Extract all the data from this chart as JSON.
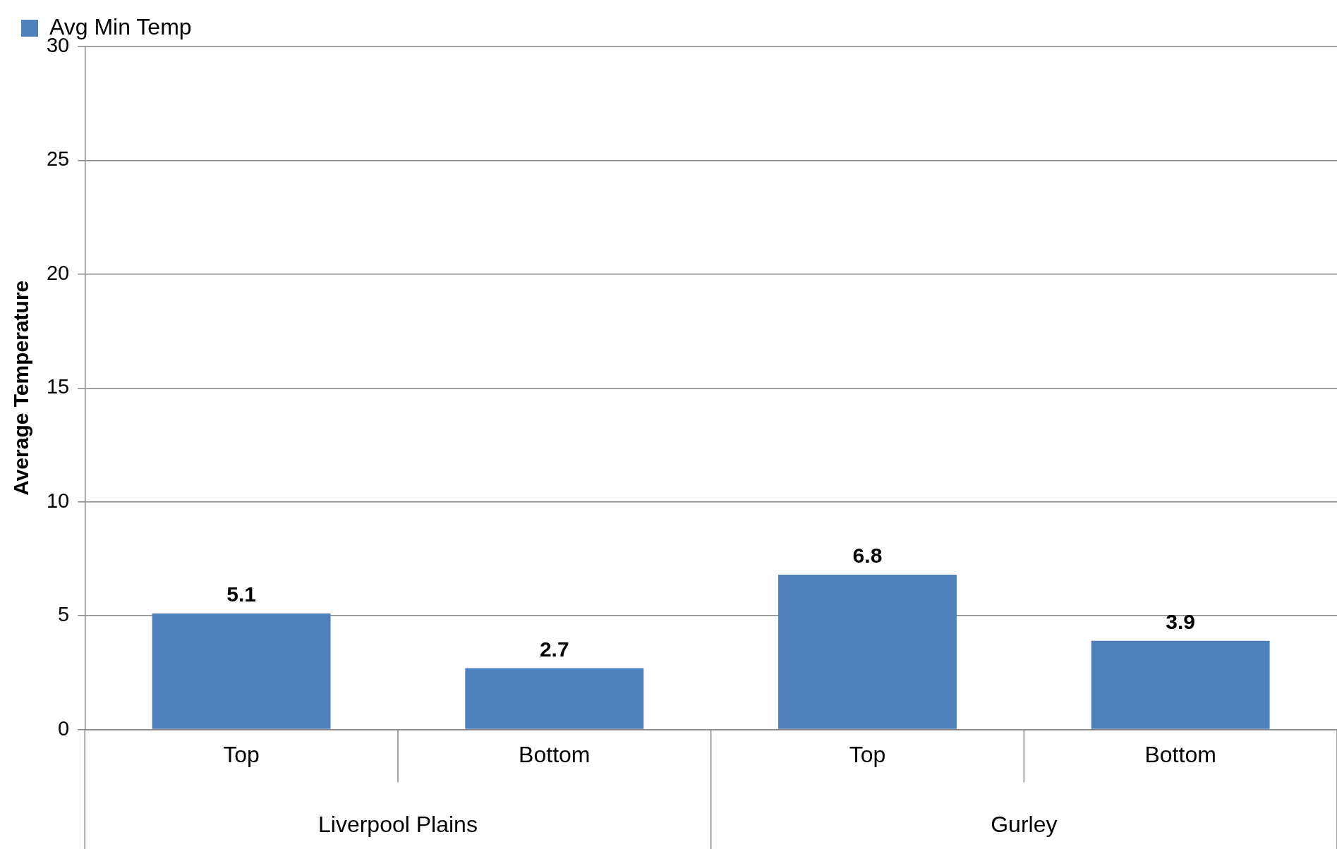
{
  "chart_data": {
    "type": "bar",
    "ylabel": "Average Temperature",
    "categories": [
      "Top",
      "Bottom",
      "Top",
      "Bottom"
    ],
    "series": [
      {
        "name": "Avg Min Temp",
        "color": "#4f81bd",
        "values": [
          5.1,
          2.7,
          6.8,
          3.9
        ]
      }
    ],
    "annotations": [
      "Liverpool Plains",
      "Gurley"
    ],
    "ylim": [
      0,
      30
    ],
    "yticks": [
      0,
      5,
      10,
      15,
      20,
      25,
      30
    ],
    "grid": "y",
    "legend": "top left",
    "data_labels": true
  }
}
